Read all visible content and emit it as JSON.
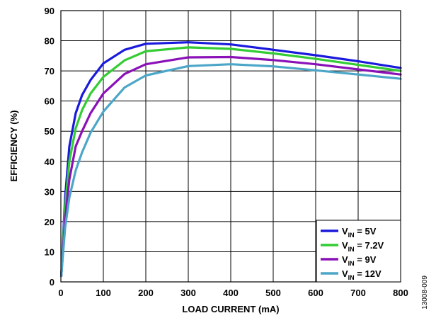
{
  "chart_data": {
    "type": "line",
    "xlabel": "LOAD CURRENT (mA)",
    "ylabel": "EFFICIENCY (%)",
    "xlim": [
      0,
      800
    ],
    "ylim": [
      0,
      90
    ],
    "x_ticks": [
      0,
      100,
      200,
      300,
      400,
      500,
      600,
      700,
      800
    ],
    "y_ticks": [
      0,
      10,
      20,
      30,
      40,
      50,
      60,
      70,
      80,
      90
    ],
    "grid": true,
    "legend_position": "bottom-right",
    "figure_id": "13008-009",
    "series": [
      {
        "name_main": "V",
        "name_sub": "IN",
        "name_rest": " = 5V",
        "color": "#1a1adc",
        "points": [
          [
            1,
            2
          ],
          [
            10,
            28
          ],
          [
            20,
            45
          ],
          [
            35,
            56
          ],
          [
            50,
            62
          ],
          [
            70,
            67
          ],
          [
            100,
            72.5
          ],
          [
            150,
            77
          ],
          [
            200,
            79
          ],
          [
            300,
            79.5
          ],
          [
            400,
            78.8
          ],
          [
            500,
            77
          ],
          [
            600,
            75.2
          ],
          [
            700,
            73.2
          ],
          [
            800,
            71
          ]
        ]
      },
      {
        "name_main": "V",
        "name_sub": "IN",
        "name_rest": " = 7.2V",
        "color": "#33cc33",
        "points": [
          [
            1,
            2
          ],
          [
            10,
            25
          ],
          [
            20,
            40
          ],
          [
            35,
            51
          ],
          [
            50,
            57
          ],
          [
            70,
            62.5
          ],
          [
            100,
            68
          ],
          [
            150,
            73.5
          ],
          [
            200,
            76.5
          ],
          [
            300,
            77.8
          ],
          [
            400,
            77.3
          ],
          [
            500,
            75.8
          ],
          [
            600,
            74
          ],
          [
            700,
            72
          ],
          [
            800,
            70
          ]
        ]
      },
      {
        "name_main": "V",
        "name_sub": "IN",
        "name_rest": " = 9V",
        "color": "#8a10b8",
        "points": [
          [
            1,
            2
          ],
          [
            10,
            21
          ],
          [
            20,
            34
          ],
          [
            35,
            45
          ],
          [
            50,
            50
          ],
          [
            70,
            56
          ],
          [
            100,
            62.5
          ],
          [
            150,
            69
          ],
          [
            200,
            72.2
          ],
          [
            300,
            74.5
          ],
          [
            400,
            74.6
          ],
          [
            500,
            73.6
          ],
          [
            600,
            72.2
          ],
          [
            700,
            70.5
          ],
          [
            800,
            68.8
          ]
        ]
      },
      {
        "name_main": "V",
        "name_sub": "IN",
        "name_rest": " = 12V",
        "color": "#4ba6c8",
        "points": [
          [
            1,
            2
          ],
          [
            10,
            18
          ],
          [
            20,
            28
          ],
          [
            35,
            37
          ],
          [
            50,
            43
          ],
          [
            70,
            49.5
          ],
          [
            100,
            56.5
          ],
          [
            150,
            64.5
          ],
          [
            200,
            68.5
          ],
          [
            300,
            71.6
          ],
          [
            400,
            72.2
          ],
          [
            500,
            71.5
          ],
          [
            600,
            70.2
          ],
          [
            700,
            68.8
          ],
          [
            800,
            67.4
          ]
        ]
      }
    ]
  }
}
